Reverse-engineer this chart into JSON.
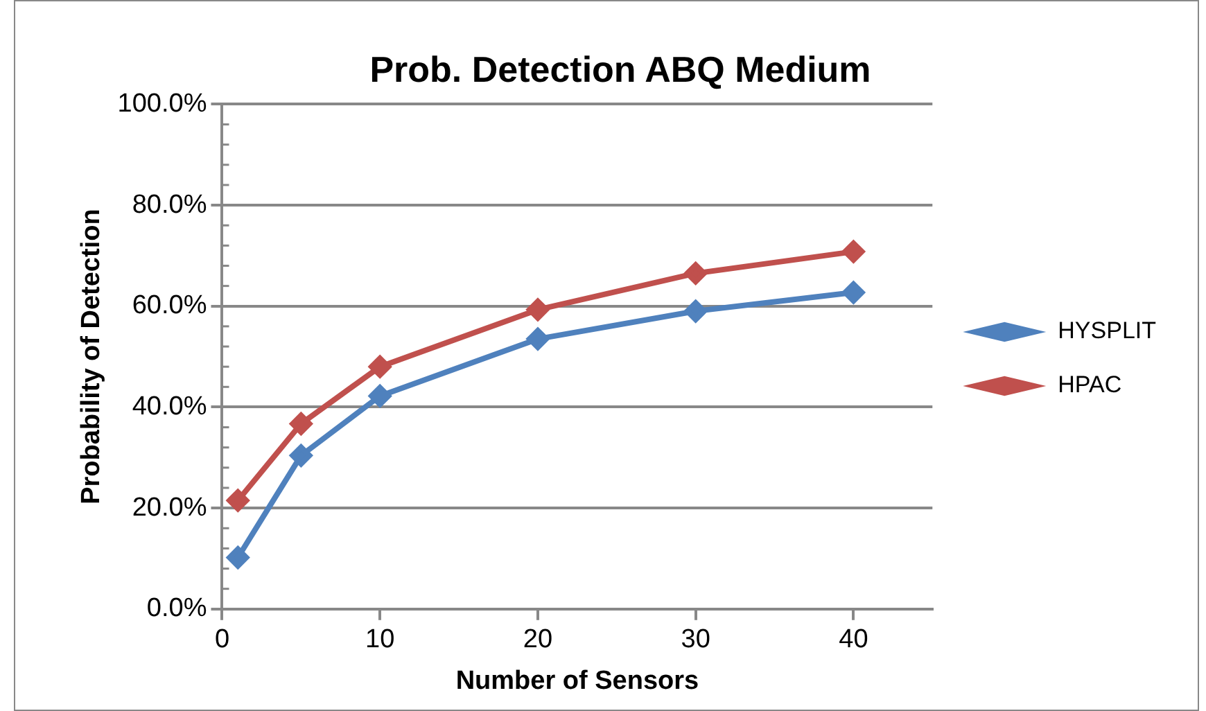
{
  "chart_data": {
    "type": "line",
    "title": "Prob. Detection ABQ Medium",
    "xlabel": "Number of Sensors",
    "ylabel": "Probability of Detection",
    "x": [
      1,
      5,
      10,
      20,
      30,
      40
    ],
    "series": [
      {
        "name": "HYSPLIT",
        "color": "#4f81bd",
        "values": [
          10.2,
          30.4,
          42.2,
          53.5,
          59.0,
          62.7
        ]
      },
      {
        "name": "HPAC",
        "color": "#c0504d",
        "values": [
          21.5,
          36.7,
          48.0,
          59.3,
          66.5,
          70.8
        ]
      }
    ],
    "xlim": [
      0,
      45
    ],
    "xticks": [
      0,
      10,
      20,
      30,
      40
    ],
    "ylim": [
      0,
      100
    ],
    "yticks": [
      {
        "value": 0,
        "label": "0.0%"
      },
      {
        "value": 4,
        "label": null
      },
      {
        "value": 8,
        "label": null
      },
      {
        "value": 12,
        "label": null
      },
      {
        "value": 16,
        "label": null
      },
      {
        "value": 20,
        "label": "20.0%"
      },
      {
        "value": 24,
        "label": null
      },
      {
        "value": 28,
        "label": null
      },
      {
        "value": 32,
        "label": null
      },
      {
        "value": 36,
        "label": null
      },
      {
        "value": 40,
        "label": "40.0%"
      },
      {
        "value": 44,
        "label": null
      },
      {
        "value": 48,
        "label": null
      },
      {
        "value": 52,
        "label": null
      },
      {
        "value": 56,
        "label": null
      },
      {
        "value": 60,
        "label": "60.0%"
      },
      {
        "value": 64,
        "label": null
      },
      {
        "value": 68,
        "label": null
      },
      {
        "value": 72,
        "label": null
      },
      {
        "value": 76,
        "label": null
      },
      {
        "value": 80,
        "label": "80.0%"
      },
      {
        "value": 84,
        "label": null
      },
      {
        "value": 88,
        "label": null
      },
      {
        "value": 92,
        "label": null
      },
      {
        "value": 96,
        "label": null
      },
      {
        "value": 100,
        "label": "100.0%"
      }
    ],
    "grid": "y",
    "legend": "right",
    "marker": "diamond",
    "line_style": "solid"
  }
}
